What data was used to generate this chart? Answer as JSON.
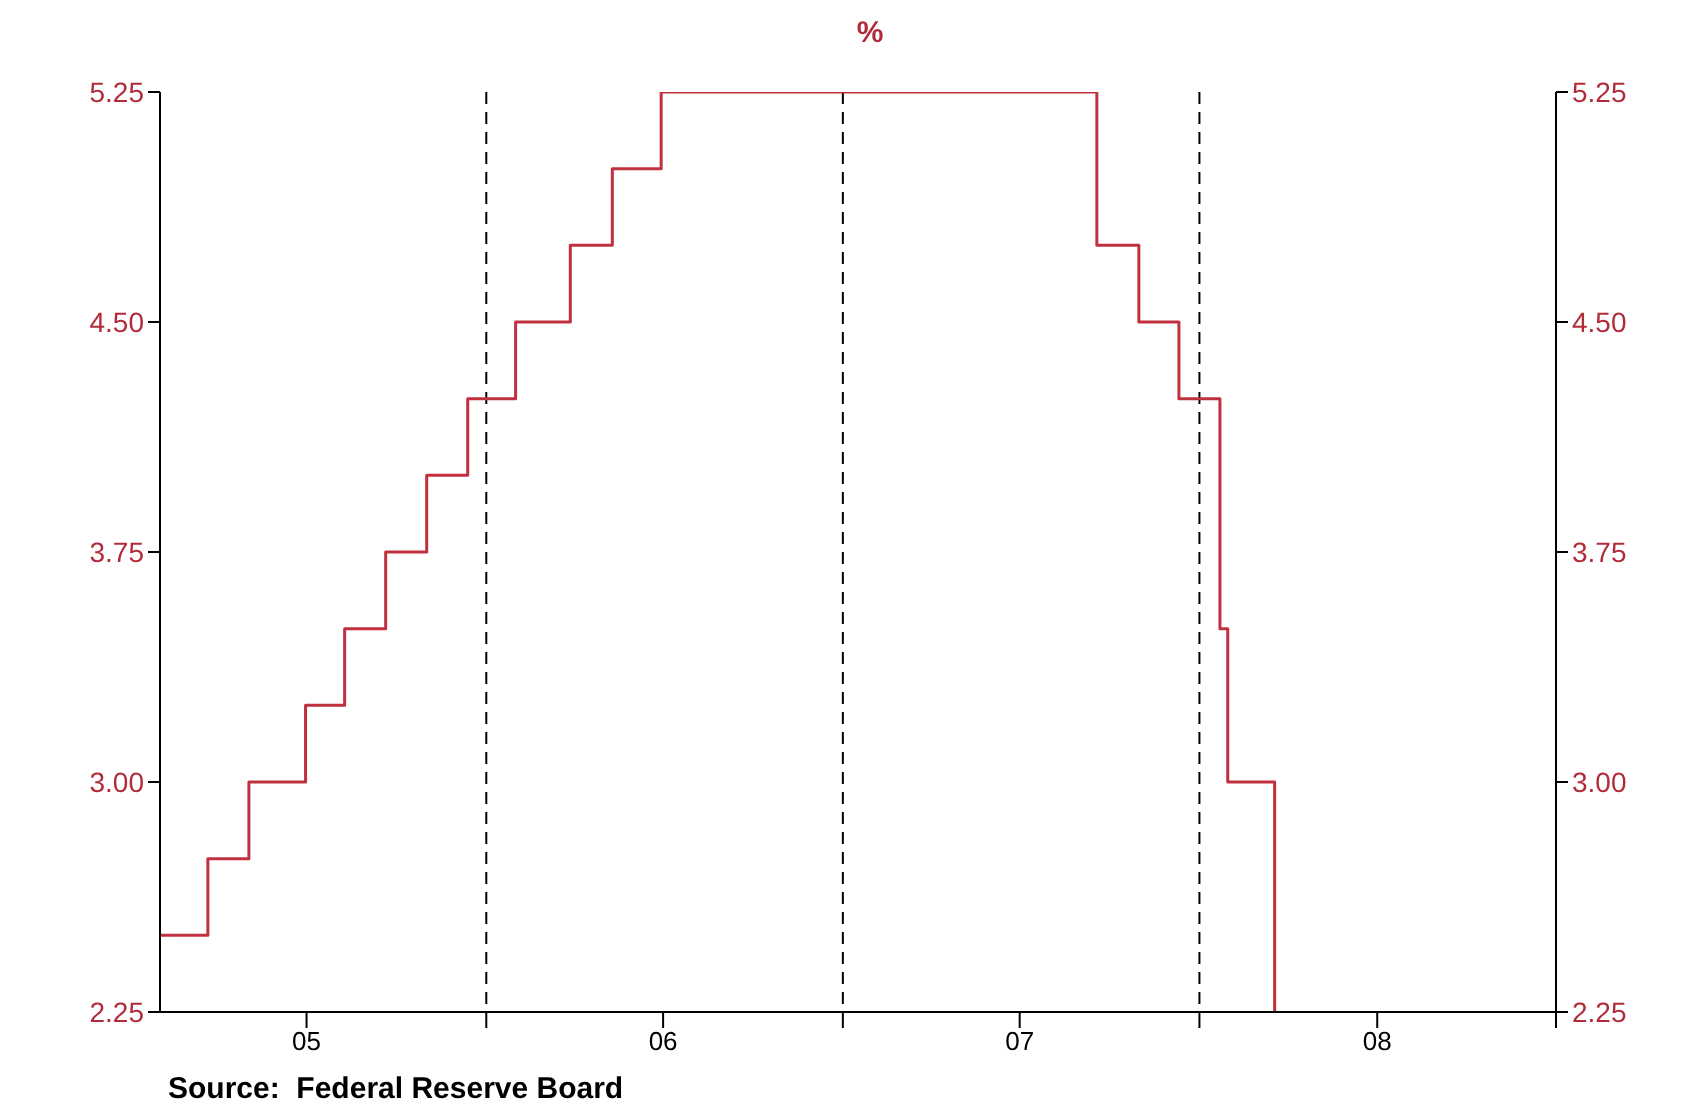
{
  "chart_data": {
    "type": "step",
    "title": "%",
    "x": [
      "2005-02-02",
      "2005-03-22",
      "2005-05-03",
      "2005-06-30",
      "2005-08-09",
      "2005-09-20",
      "2005-11-01",
      "2005-12-13",
      "2006-01-31",
      "2006-03-28",
      "2006-05-10",
      "2006-06-29",
      "2007-09-18",
      "2007-10-31",
      "2007-12-11",
      "2008-01-22",
      "2008-01-30",
      "2008-03-18"
    ],
    "series": [
      {
        "color": "#c0303f",
        "values": [
          2.5,
          2.75,
          3,
          3.25,
          3.5,
          3.75,
          4,
          4.25,
          4.5,
          4.75,
          5,
          5.25,
          4.75,
          4.5,
          4.25,
          3.5,
          3,
          2.25
        ]
      }
    ],
    "xlim": [
      "2005-02-01",
      "2008-12-31"
    ],
    "xticks": [
      {
        "value": "2005-07-01",
        "label": "05"
      },
      {
        "value": "2006-01-01",
        "label": null
      },
      {
        "value": "2006-07-01",
        "label": "06"
      },
      {
        "value": "2007-01-01",
        "label": null
      },
      {
        "value": "2007-07-01",
        "label": "07"
      },
      {
        "value": "2008-01-01",
        "label": null
      },
      {
        "value": "2008-07-01",
        "label": "08"
      },
      {
        "value": "2008-12-31",
        "label": null
      }
    ],
    "ylim": [
      2.25,
      5.25
    ],
    "yticks": [
      2.25,
      {
        "value": 3,
        "label": "3.00"
      },
      3.75,
      {
        "value": 4.5,
        "label": "4.50"
      },
      5.25
    ],
    "y2lim": [
      2.25,
      5.25
    ],
    "y2ticks": [
      2.25,
      {
        "value": 3,
        "label": "3.00"
      },
      3.75,
      {
        "value": 4.5,
        "label": "4.50"
      },
      5.25
    ],
    "grid": true,
    "line_style": "solid",
    "annotations": [
      "Source:  Federal Reserve Board"
    ]
  }
}
